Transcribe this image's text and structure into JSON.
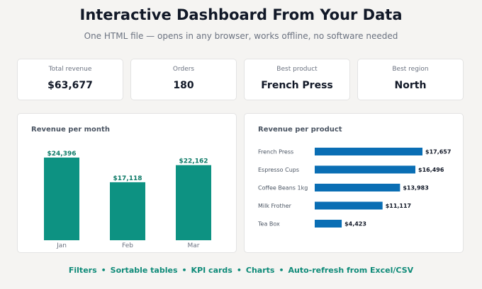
{
  "header": {
    "title": "Interactive Dashboard From Your Data",
    "subtitle": "One HTML file — opens in any browser, works offline, no software needed"
  },
  "kpis": [
    {
      "label": "Total revenue",
      "value": "$63,677"
    },
    {
      "label": "Orders",
      "value": "180"
    },
    {
      "label": "Best product",
      "value": "French Press"
    },
    {
      "label": "Best region",
      "value": "North"
    }
  ],
  "colors": {
    "month_bar": "#0d9282",
    "month_label": "#0d7a67",
    "product_bar": "#0a6eb4",
    "feature_text": "#0e8a78"
  },
  "chart_data": [
    {
      "type": "bar",
      "title": "Revenue per month",
      "categories": [
        "Jan",
        "Feb",
        "Mar"
      ],
      "values": [
        24396,
        17118,
        22162
      ],
      "value_labels": [
        "$24,396",
        "$17,118",
        "$22,162"
      ],
      "xlabel": "",
      "ylabel": "",
      "ylim": [
        0,
        24396
      ],
      "grid": false
    },
    {
      "type": "bar",
      "orientation": "horizontal",
      "title": "Revenue per product",
      "categories": [
        "French Press",
        "Espresso Cups",
        "Coffee Beans 1kg",
        "Milk Frother",
        "Tea Box"
      ],
      "values": [
        17657,
        16496,
        13983,
        11117,
        4423
      ],
      "value_labels": [
        "$17,657",
        "$16,496",
        "$13,983",
        "$11,117",
        "$4,423"
      ],
      "xlabel": "",
      "ylabel": "",
      "xlim": [
        0,
        17657
      ],
      "grid": false
    }
  ],
  "features": {
    "items": [
      "Filters",
      "Sortable tables",
      "KPI cards",
      "Charts",
      "Auto-refresh from Excel/CSV"
    ],
    "separator": "•"
  }
}
